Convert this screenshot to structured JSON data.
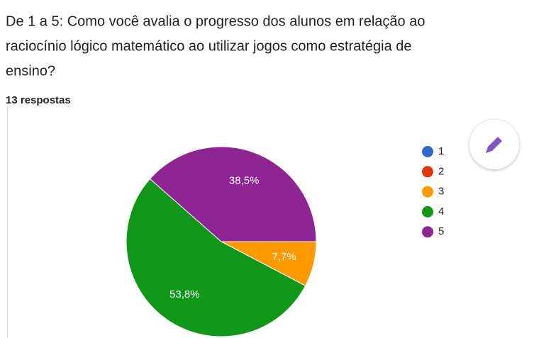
{
  "chart_data": {
    "type": "pie",
    "title_lines": [
      "De 1 a 5:   Como você avalia o progresso dos alunos em relação ao",
      "raciocínio lógico matemático ao utilizar jogos como estratégia de",
      "ensino?"
    ],
    "subtitle": "13 respostas",
    "categories": [
      "1",
      "2",
      "3",
      "4",
      "5"
    ],
    "values": [
      0,
      0,
      7.7,
      53.8,
      38.5
    ],
    "value_labels": [
      null,
      null,
      "7,7%",
      "53,8%",
      "38,5%"
    ],
    "colors": [
      "#3366cc",
      "#dc3912",
      "#ff9900",
      "#109618",
      "#8f2493"
    ]
  }
}
